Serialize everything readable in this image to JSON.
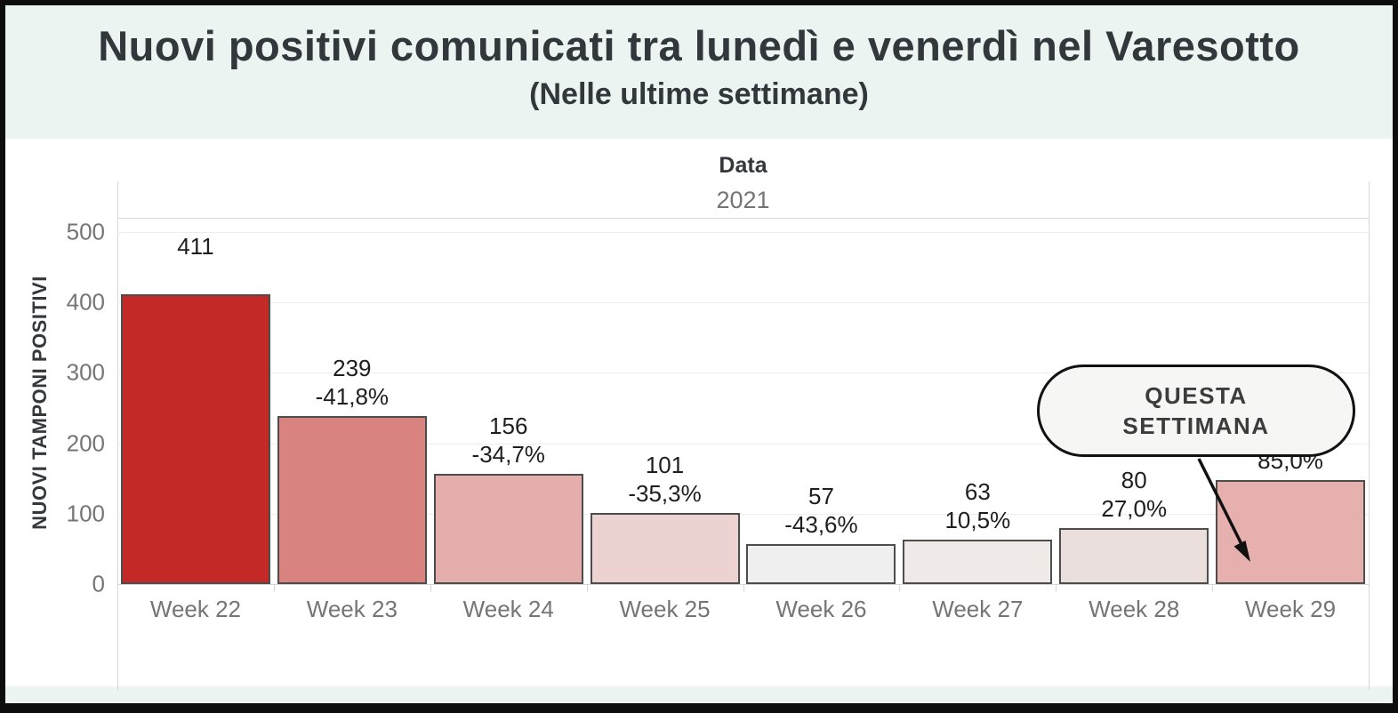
{
  "header": {
    "title": "Nuovi positivi comunicati tra lunedì e venerdì nel Varesotto",
    "subtitle": "(Nelle ultime settimane)"
  },
  "chart_data": {
    "type": "bar",
    "title": "Nuovi positivi comunicati tra lunedì e venerdì nel Varesotto (Nelle ultime settimane)",
    "x_axis_title": "Data",
    "x_axis_subtitle": "2021",
    "ylabel": "NUOVI TAMPONI POSITIVI",
    "categories": [
      "Week 22",
      "Week 23",
      "Week 24",
      "Week 25",
      "Week 26",
      "Week 27",
      "Week 28",
      "Week 29"
    ],
    "values": [
      411,
      239,
      156,
      101,
      57,
      63,
      80,
      148
    ],
    "pct_change_labels": [
      "",
      "-41,8%",
      "-34,7%",
      "-35,3%",
      "-43,6%",
      "10,5%",
      "27,0%",
      "85,0%"
    ],
    "bar_colors": [
      "#c32a27",
      "#d98380",
      "#e3aeac",
      "#ecd3d1",
      "#f0efef",
      "#efeae8",
      "#eadfdd",
      "#e5b0ae"
    ],
    "yticks": [
      0,
      100,
      200,
      300,
      400,
      500
    ],
    "ylim": [
      0,
      520
    ],
    "grid": true,
    "legend": "none",
    "annotation": {
      "label": "QUESTA\nSETTIMANA",
      "target_category": "Week 29"
    }
  },
  "colors": {
    "background_band": "#ecf4f1",
    "panel": "#ffffff",
    "highlight_bar": "#c32a27",
    "bar_border": "#4f4c4c",
    "axis_text": "#757575",
    "label_text": "#1e1e1e",
    "frame": "#0d0d0d"
  }
}
